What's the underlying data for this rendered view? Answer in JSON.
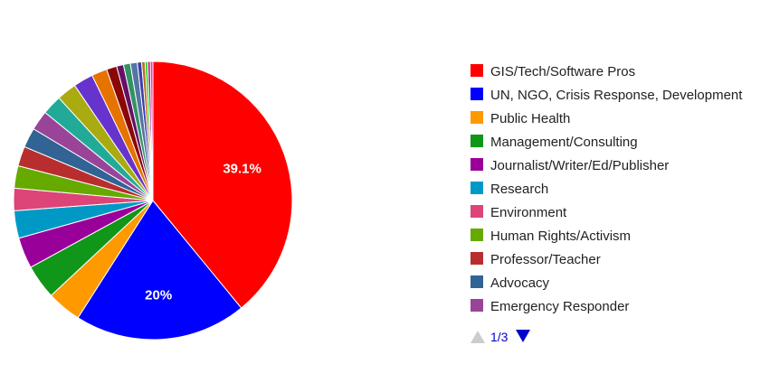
{
  "chart_data": {
    "type": "pie",
    "title": "",
    "legend_position": "right",
    "slices": [
      {
        "label": "GIS/Tech/Software Pros",
        "value": 39.1,
        "color": "#ff0000",
        "data_label": "39.1%"
      },
      {
        "label": "UN, NGO, Crisis Response, Development",
        "value": 20.0,
        "color": "#0000ff",
        "data_label": "20%"
      },
      {
        "label": "Public Health",
        "value": 4.0,
        "color": "#ff9900",
        "data_label": ""
      },
      {
        "label": "Management/Consulting",
        "value": 4.0,
        "color": "#109618",
        "data_label": ""
      },
      {
        "label": "Journalist/Writer/Ed/Publisher",
        "value": 3.6,
        "color": "#990099",
        "data_label": ""
      },
      {
        "label": "Research",
        "value": 3.2,
        "color": "#0099c6",
        "data_label": ""
      },
      {
        "label": "Environment",
        "value": 2.6,
        "color": "#dd4477",
        "data_label": ""
      },
      {
        "label": "Human Rights/Activism",
        "value": 2.6,
        "color": "#66aa00",
        "data_label": ""
      },
      {
        "label": "Professor/Teacher",
        "value": 2.3,
        "color": "#b82e2e",
        "data_label": ""
      },
      {
        "label": "Advocacy",
        "value": 2.3,
        "color": "#316395",
        "data_label": ""
      },
      {
        "label": "Emergency Responder",
        "value": 2.3,
        "color": "#994499",
        "data_label": ""
      },
      {
        "label": "",
        "value": 2.3,
        "color": "#22aa99",
        "data_label": ""
      },
      {
        "label": "",
        "value": 2.3,
        "color": "#aaaa11",
        "data_label": ""
      },
      {
        "label": "",
        "value": 2.3,
        "color": "#6633cc",
        "data_label": ""
      },
      {
        "label": "",
        "value": 1.8,
        "color": "#e67300",
        "data_label": ""
      },
      {
        "label": "",
        "value": 1.2,
        "color": "#8b0707",
        "data_label": ""
      },
      {
        "label": "",
        "value": 0.8,
        "color": "#651067",
        "data_label": ""
      },
      {
        "label": "",
        "value": 0.8,
        "color": "#329262",
        "data_label": ""
      },
      {
        "label": "",
        "value": 0.8,
        "color": "#5574a6",
        "data_label": ""
      },
      {
        "label": "",
        "value": 0.5,
        "color": "#3b3eac",
        "data_label": ""
      },
      {
        "label": "",
        "value": 0.4,
        "color": "#b77322",
        "data_label": ""
      },
      {
        "label": "",
        "value": 0.3,
        "color": "#16d620",
        "data_label": ""
      },
      {
        "label": "",
        "value": 0.3,
        "color": "#b91383",
        "data_label": ""
      },
      {
        "label": "",
        "value": 0.3,
        "color": "#f4359e",
        "data_label": ""
      }
    ],
    "legend_visible_count": 11,
    "pager": {
      "text": "1/3",
      "prev_icon": "triangle-up-icon",
      "next_icon": "triangle-down-icon",
      "prev_color": "#cccccc",
      "next_color": "#0000cc"
    }
  }
}
